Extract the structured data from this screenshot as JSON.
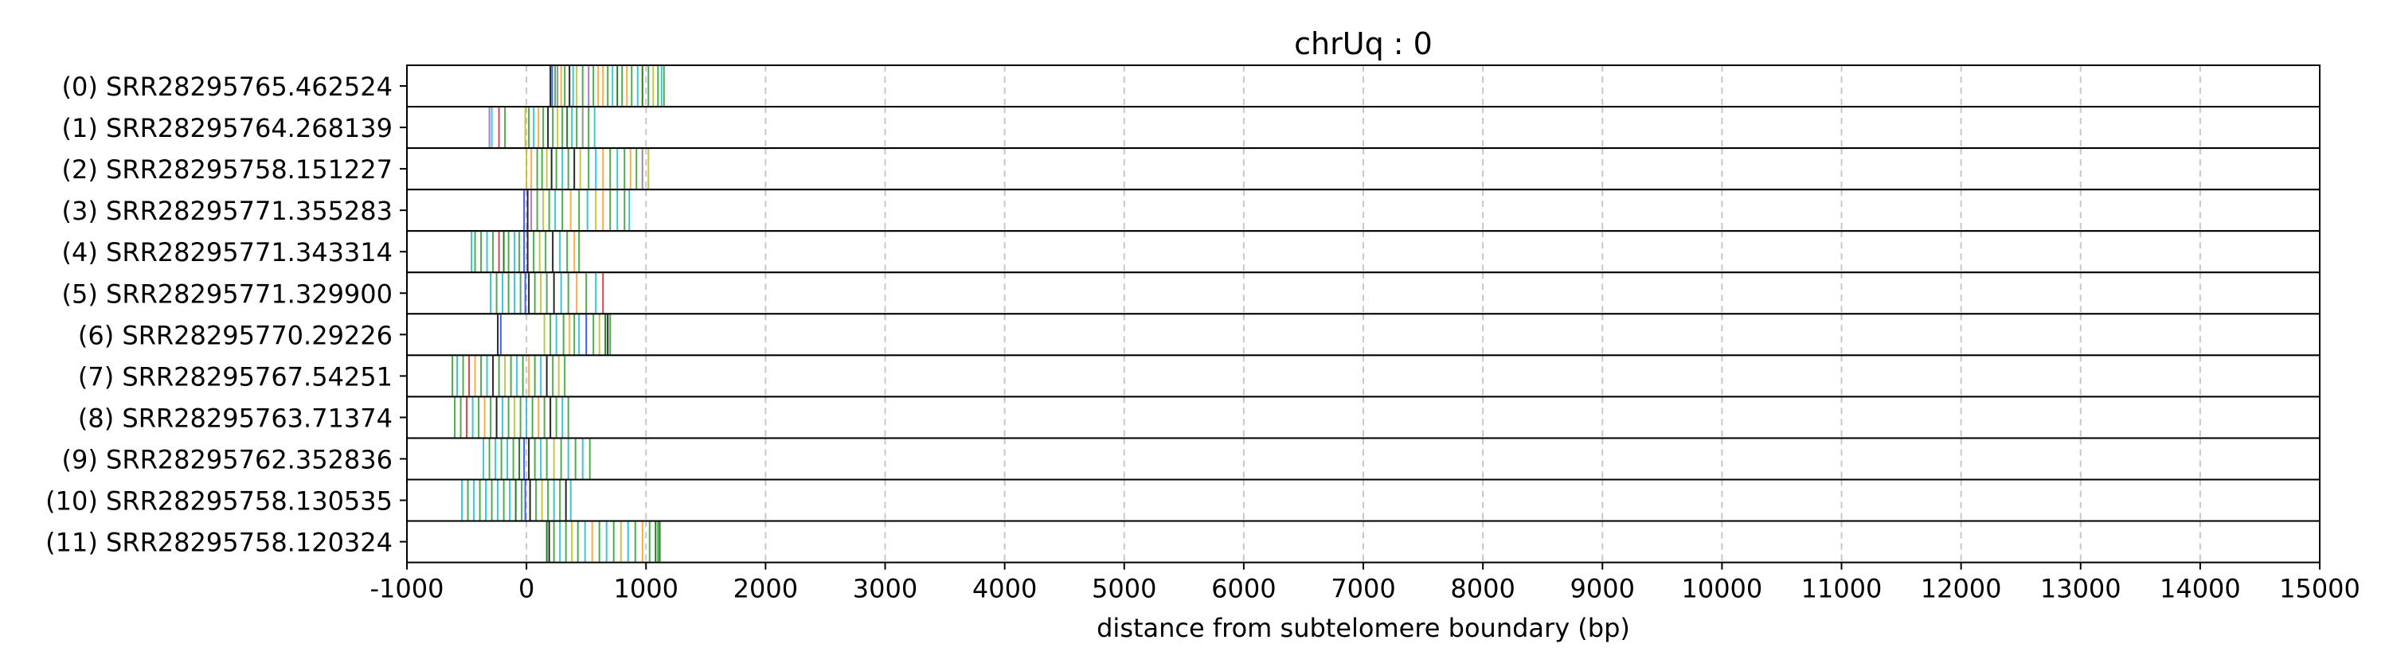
{
  "chart_data": {
    "type": "scatter",
    "title": "chrUq : 0",
    "xlabel": "distance from subtelomere boundary (bp)",
    "ylabel": "",
    "xlim": [
      -1000,
      15000
    ],
    "x_ticks": [
      -1000,
      0,
      1000,
      2000,
      3000,
      4000,
      5000,
      6000,
      7000,
      8000,
      9000,
      10000,
      11000,
      12000,
      13000,
      14000,
      15000
    ],
    "x_tick_labels": [
      "-1000",
      "0",
      "1000",
      "2000",
      "3000",
      "4000",
      "5000",
      "6000",
      "7000",
      "8000",
      "9000",
      "10000",
      "11000",
      "12000",
      "13000",
      "14000",
      "15000"
    ],
    "grid": "vertical dashed at x ticks",
    "legend": "none",
    "mark": "vertical line per read feature",
    "colors": {
      "green": "#2ca02c",
      "darkgreen": "#006400",
      "teal": "#17becf",
      "blue": "#1f3fff",
      "red": "#d62728",
      "orange": "#ff9f1c",
      "yellow": "#bcbd22",
      "purple": "#9467bd",
      "black": "#000000",
      "gray": "#7f7f7f"
    },
    "rows": [
      {
        "label": "(0) SRR28295765.462524",
        "marks": [
          {
            "x": 200,
            "c": "black"
          },
          {
            "x": 215,
            "c": "blue"
          },
          {
            "x": 240,
            "c": "green"
          },
          {
            "x": 260,
            "c": "gray"
          },
          {
            "x": 290,
            "c": "orange"
          },
          {
            "x": 320,
            "c": "green"
          },
          {
            "x": 360,
            "c": "black"
          },
          {
            "x": 390,
            "c": "teal"
          },
          {
            "x": 420,
            "c": "yellow"
          },
          {
            "x": 470,
            "c": "green"
          },
          {
            "x": 520,
            "c": "purple"
          },
          {
            "x": 560,
            "c": "green"
          },
          {
            "x": 600,
            "c": "orange"
          },
          {
            "x": 640,
            "c": "orange"
          },
          {
            "x": 680,
            "c": "green"
          },
          {
            "x": 720,
            "c": "teal"
          },
          {
            "x": 760,
            "c": "darkgreen"
          },
          {
            "x": 800,
            "c": "green"
          },
          {
            "x": 840,
            "c": "orange"
          },
          {
            "x": 880,
            "c": "green"
          },
          {
            "x": 930,
            "c": "teal"
          },
          {
            "x": 970,
            "c": "darkgreen"
          },
          {
            "x": 1020,
            "c": "green"
          },
          {
            "x": 1060,
            "c": "yellow"
          },
          {
            "x": 1100,
            "c": "green"
          },
          {
            "x": 1130,
            "c": "teal"
          },
          {
            "x": 1150,
            "c": "green"
          }
        ]
      },
      {
        "label": "(1) SRR28295764.268139",
        "marks": [
          {
            "x": -310,
            "c": "purple"
          },
          {
            "x": -290,
            "c": "teal"
          },
          {
            "x": -230,
            "c": "red"
          },
          {
            "x": -180,
            "c": "green"
          },
          {
            "x": -10,
            "c": "yellow"
          },
          {
            "x": 20,
            "c": "green"
          },
          {
            "x": 60,
            "c": "teal"
          },
          {
            "x": 100,
            "c": "orange"
          },
          {
            "x": 140,
            "c": "green"
          },
          {
            "x": 180,
            "c": "black"
          },
          {
            "x": 220,
            "c": "green"
          },
          {
            "x": 260,
            "c": "yellow"
          },
          {
            "x": 300,
            "c": "green"
          },
          {
            "x": 340,
            "c": "darkgreen"
          },
          {
            "x": 380,
            "c": "teal"
          },
          {
            "x": 420,
            "c": "green"
          },
          {
            "x": 470,
            "c": "gray"
          },
          {
            "x": 520,
            "c": "green"
          },
          {
            "x": 570,
            "c": "teal"
          }
        ]
      },
      {
        "label": "(2) SRR28295758.151227",
        "marks": [
          {
            "x": 0,
            "c": "yellow"
          },
          {
            "x": 40,
            "c": "orange"
          },
          {
            "x": 90,
            "c": "green"
          },
          {
            "x": 130,
            "c": "green"
          },
          {
            "x": 170,
            "c": "yellow"
          },
          {
            "x": 210,
            "c": "black"
          },
          {
            "x": 250,
            "c": "green"
          },
          {
            "x": 300,
            "c": "teal"
          },
          {
            "x": 350,
            "c": "green"
          },
          {
            "x": 400,
            "c": "black"
          },
          {
            "x": 450,
            "c": "yellow"
          },
          {
            "x": 520,
            "c": "green"
          },
          {
            "x": 580,
            "c": "teal"
          },
          {
            "x": 640,
            "c": "orange"
          },
          {
            "x": 700,
            "c": "green"
          },
          {
            "x": 760,
            "c": "teal"
          },
          {
            "x": 820,
            "c": "green"
          },
          {
            "x": 870,
            "c": "orange"
          },
          {
            "x": 920,
            "c": "green"
          },
          {
            "x": 970,
            "c": "gray"
          },
          {
            "x": 1020,
            "c": "yellow"
          }
        ]
      },
      {
        "label": "(3) SRR28295771.355283",
        "marks": [
          {
            "x": -20,
            "c": "blue"
          },
          {
            "x": 10,
            "c": "black"
          },
          {
            "x": 40,
            "c": "purple"
          },
          {
            "x": 90,
            "c": "green"
          },
          {
            "x": 140,
            "c": "yellow"
          },
          {
            "x": 190,
            "c": "green"
          },
          {
            "x": 240,
            "c": "teal"
          },
          {
            "x": 300,
            "c": "green"
          },
          {
            "x": 370,
            "c": "orange"
          },
          {
            "x": 440,
            "c": "green"
          },
          {
            "x": 510,
            "c": "teal"
          },
          {
            "x": 580,
            "c": "yellow"
          },
          {
            "x": 640,
            "c": "orange"
          },
          {
            "x": 700,
            "c": "green"
          },
          {
            "x": 760,
            "c": "teal"
          },
          {
            "x": 820,
            "c": "green"
          },
          {
            "x": 860,
            "c": "teal"
          }
        ]
      },
      {
        "label": "(4) SRR28295771.343314",
        "marks": [
          {
            "x": -460,
            "c": "teal"
          },
          {
            "x": -430,
            "c": "green"
          },
          {
            "x": -380,
            "c": "green"
          },
          {
            "x": -330,
            "c": "teal"
          },
          {
            "x": -280,
            "c": "green"
          },
          {
            "x": -230,
            "c": "red"
          },
          {
            "x": -190,
            "c": "darkgreen"
          },
          {
            "x": -150,
            "c": "green"
          },
          {
            "x": -100,
            "c": "teal"
          },
          {
            "x": -60,
            "c": "green"
          },
          {
            "x": -20,
            "c": "blue"
          },
          {
            "x": 10,
            "c": "black"
          },
          {
            "x": 60,
            "c": "green"
          },
          {
            "x": 110,
            "c": "yellow"
          },
          {
            "x": 160,
            "c": "green"
          },
          {
            "x": 220,
            "c": "black"
          },
          {
            "x": 280,
            "c": "teal"
          },
          {
            "x": 340,
            "c": "green"
          },
          {
            "x": 400,
            "c": "orange"
          },
          {
            "x": 440,
            "c": "green"
          }
        ]
      },
      {
        "label": "(5) SRR28295771.329900",
        "marks": [
          {
            "x": -300,
            "c": "teal"
          },
          {
            "x": -250,
            "c": "green"
          },
          {
            "x": -200,
            "c": "teal"
          },
          {
            "x": -150,
            "c": "green"
          },
          {
            "x": -100,
            "c": "teal"
          },
          {
            "x": -50,
            "c": "green"
          },
          {
            "x": -10,
            "c": "blue"
          },
          {
            "x": 20,
            "c": "black"
          },
          {
            "x": 70,
            "c": "green"
          },
          {
            "x": 120,
            "c": "yellow"
          },
          {
            "x": 170,
            "c": "green"
          },
          {
            "x": 230,
            "c": "black"
          },
          {
            "x": 290,
            "c": "teal"
          },
          {
            "x": 350,
            "c": "green"
          },
          {
            "x": 420,
            "c": "orange"
          },
          {
            "x": 500,
            "c": "green"
          },
          {
            "x": 580,
            "c": "teal"
          },
          {
            "x": 640,
            "c": "red"
          }
        ]
      },
      {
        "label": "(6) SRR28295770.29226",
        "marks": [
          {
            "x": -240,
            "c": "black"
          },
          {
            "x": -215,
            "c": "blue"
          },
          {
            "x": 150,
            "c": "yellow"
          },
          {
            "x": 200,
            "c": "green"
          },
          {
            "x": 250,
            "c": "teal"
          },
          {
            "x": 310,
            "c": "green"
          },
          {
            "x": 360,
            "c": "orange"
          },
          {
            "x": 400,
            "c": "green"
          },
          {
            "x": 440,
            "c": "teal"
          },
          {
            "x": 500,
            "c": "blue"
          },
          {
            "x": 560,
            "c": "green"
          },
          {
            "x": 610,
            "c": "yellow"
          },
          {
            "x": 660,
            "c": "darkgreen"
          },
          {
            "x": 680,
            "c": "black"
          },
          {
            "x": 700,
            "c": "green"
          }
        ]
      },
      {
        "label": "(7) SRR28295767.54251",
        "marks": [
          {
            "x": -620,
            "c": "green"
          },
          {
            "x": -580,
            "c": "teal"
          },
          {
            "x": -530,
            "c": "green"
          },
          {
            "x": -480,
            "c": "red"
          },
          {
            "x": -430,
            "c": "orange"
          },
          {
            "x": -380,
            "c": "green"
          },
          {
            "x": -330,
            "c": "teal"
          },
          {
            "x": -280,
            "c": "black"
          },
          {
            "x": -230,
            "c": "green"
          },
          {
            "x": -180,
            "c": "yellow"
          },
          {
            "x": -130,
            "c": "green"
          },
          {
            "x": -80,
            "c": "teal"
          },
          {
            "x": -30,
            "c": "green"
          },
          {
            "x": 20,
            "c": "orange"
          },
          {
            "x": 70,
            "c": "green"
          },
          {
            "x": 120,
            "c": "teal"
          },
          {
            "x": 170,
            "c": "black"
          },
          {
            "x": 220,
            "c": "green"
          },
          {
            "x": 270,
            "c": "yellow"
          },
          {
            "x": 320,
            "c": "green"
          }
        ]
      },
      {
        "label": "(8) SRR28295763.71374",
        "marks": [
          {
            "x": -600,
            "c": "green"
          },
          {
            "x": -550,
            "c": "green"
          },
          {
            "x": -500,
            "c": "red"
          },
          {
            "x": -450,
            "c": "teal"
          },
          {
            "x": -400,
            "c": "green"
          },
          {
            "x": -350,
            "c": "orange"
          },
          {
            "x": -300,
            "c": "green"
          },
          {
            "x": -250,
            "c": "black"
          },
          {
            "x": -200,
            "c": "teal"
          },
          {
            "x": -150,
            "c": "green"
          },
          {
            "x": -100,
            "c": "yellow"
          },
          {
            "x": -50,
            "c": "green"
          },
          {
            "x": 0,
            "c": "teal"
          },
          {
            "x": 50,
            "c": "green"
          },
          {
            "x": 100,
            "c": "orange"
          },
          {
            "x": 150,
            "c": "green"
          },
          {
            "x": 200,
            "c": "black"
          },
          {
            "x": 250,
            "c": "green"
          },
          {
            "x": 300,
            "c": "teal"
          },
          {
            "x": 350,
            "c": "green"
          }
        ]
      },
      {
        "label": "(9) SRR28295762.352836",
        "marks": [
          {
            "x": -360,
            "c": "teal"
          },
          {
            "x": -310,
            "c": "green"
          },
          {
            "x": -260,
            "c": "teal"
          },
          {
            "x": -210,
            "c": "green"
          },
          {
            "x": -160,
            "c": "teal"
          },
          {
            "x": -110,
            "c": "green"
          },
          {
            "x": -60,
            "c": "darkgreen"
          },
          {
            "x": -20,
            "c": "blue"
          },
          {
            "x": 20,
            "c": "black"
          },
          {
            "x": 70,
            "c": "green"
          },
          {
            "x": 120,
            "c": "teal"
          },
          {
            "x": 170,
            "c": "green"
          },
          {
            "x": 230,
            "c": "yellow"
          },
          {
            "x": 290,
            "c": "green"
          },
          {
            "x": 350,
            "c": "teal"
          },
          {
            "x": 410,
            "c": "green"
          },
          {
            "x": 470,
            "c": "teal"
          },
          {
            "x": 530,
            "c": "green"
          }
        ]
      },
      {
        "label": "(10) SRR28295758.130535",
        "marks": [
          {
            "x": -540,
            "c": "teal"
          },
          {
            "x": -490,
            "c": "green"
          },
          {
            "x": -440,
            "c": "teal"
          },
          {
            "x": -390,
            "c": "green"
          },
          {
            "x": -340,
            "c": "teal"
          },
          {
            "x": -290,
            "c": "green"
          },
          {
            "x": -240,
            "c": "teal"
          },
          {
            "x": -190,
            "c": "green"
          },
          {
            "x": -140,
            "c": "teal"
          },
          {
            "x": -90,
            "c": "darkgreen"
          },
          {
            "x": -40,
            "c": "green"
          },
          {
            "x": -10,
            "c": "blue"
          },
          {
            "x": 30,
            "c": "black"
          },
          {
            "x": 80,
            "c": "green"
          },
          {
            "x": 130,
            "c": "yellow"
          },
          {
            "x": 180,
            "c": "green"
          },
          {
            "x": 230,
            "c": "teal"
          },
          {
            "x": 280,
            "c": "green"
          },
          {
            "x": 330,
            "c": "black"
          },
          {
            "x": 370,
            "c": "teal"
          }
        ]
      },
      {
        "label": "(11) SRR28295758.120324",
        "marks": [
          {
            "x": 170,
            "c": "darkgreen"
          },
          {
            "x": 190,
            "c": "black"
          },
          {
            "x": 230,
            "c": "green"
          },
          {
            "x": 280,
            "c": "teal"
          },
          {
            "x": 330,
            "c": "green"
          },
          {
            "x": 380,
            "c": "yellow"
          },
          {
            "x": 430,
            "c": "green"
          },
          {
            "x": 490,
            "c": "teal"
          },
          {
            "x": 550,
            "c": "orange"
          },
          {
            "x": 610,
            "c": "green"
          },
          {
            "x": 670,
            "c": "teal"
          },
          {
            "x": 730,
            "c": "green"
          },
          {
            "x": 790,
            "c": "yellow"
          },
          {
            "x": 850,
            "c": "teal"
          },
          {
            "x": 910,
            "c": "green"
          },
          {
            "x": 970,
            "c": "orange"
          },
          {
            "x": 1030,
            "c": "green"
          },
          {
            "x": 1080,
            "c": "darkgreen"
          },
          {
            "x": 1100,
            "c": "green"
          },
          {
            "x": 1115,
            "c": "darkgreen"
          }
        ]
      }
    ]
  }
}
